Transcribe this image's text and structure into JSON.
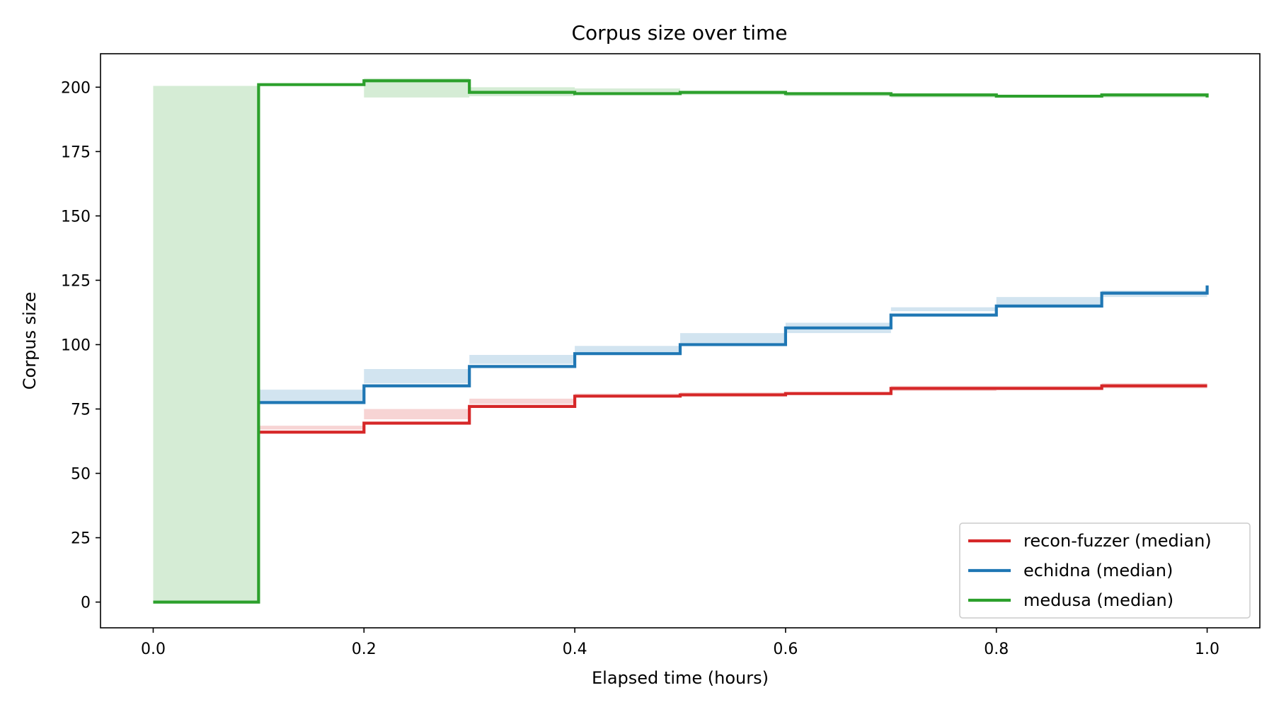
{
  "chart_data": {
    "type": "line",
    "title": "Corpus size over time",
    "xlabel": "Elapsed time (hours)",
    "ylabel": "Corpus size",
    "xlim": [
      -0.05,
      1.05
    ],
    "ylim": [
      -10,
      213
    ],
    "xticks": [
      0.0,
      0.2,
      0.4,
      0.6,
      0.8,
      1.0
    ],
    "xtick_labels": [
      "0.0",
      "0.2",
      "0.4",
      "0.6",
      "0.8",
      "1.0"
    ],
    "yticks": [
      0,
      25,
      50,
      75,
      100,
      125,
      150,
      175,
      200
    ],
    "ytick_labels": [
      "0",
      "25",
      "50",
      "75",
      "100",
      "125",
      "150",
      "175",
      "200"
    ],
    "step": "post",
    "grid": false,
    "legend_position": "lower-right",
    "series": [
      {
        "name": "recon-fuzzer (median)",
        "color": "#d62728",
        "x": [
          0.1,
          0.2,
          0.3,
          0.4,
          0.5,
          0.6,
          0.7,
          0.8,
          0.9,
          1.0
        ],
        "y": [
          66,
          69.5,
          76,
          80,
          80.5,
          81,
          83,
          83,
          84,
          84
        ],
        "band_low": [
          65,
          68.5,
          75,
          79,
          79.5,
          80,
          82,
          82,
          83,
          83
        ],
        "band_high": [
          67,
          71,
          77,
          81,
          81.5,
          82,
          84,
          84,
          85,
          85
        ]
      },
      {
        "name": "echidna (median)",
        "color": "#1f77b4",
        "x": [
          0.1,
          0.2,
          0.3,
          0.4,
          0.5,
          0.6,
          0.7,
          0.8,
          0.9,
          1.0
        ],
        "y": [
          77.5,
          84,
          91.5,
          96.5,
          100,
          106.5,
          111.5,
          115,
          120,
          123
        ],
        "band_low": [
          77,
          82.5,
          90.5,
          96,
          99.5,
          104.5,
          104.5,
          114.5,
          118.5,
          118.5
        ],
        "band_high": [
          78,
          85,
          92.5,
          97,
          100.5,
          108.5,
          113,
          115.5,
          121,
          124
        ]
      },
      {
        "name": "medusa (median)",
        "color": "#2ca02c",
        "x": [
          0.0,
          0.1,
          0.2,
          0.3,
          0.4,
          0.5,
          0.6,
          0.7,
          0.8,
          0.9,
          1.0
        ],
        "y": [
          0,
          201,
          202.5,
          198,
          197.5,
          198,
          197.5,
          197,
          196.5,
          197,
          196
        ],
        "band_low": [
          0,
          200.5,
          201.5,
          196,
          196.5,
          197.5,
          197,
          196.5,
          196,
          196.5,
          196
        ],
        "band_high": [
          0,
          201.5,
          203.5,
          200,
          199.5,
          198.5,
          198,
          197.5,
          197,
          197.5,
          197
        ]
      }
    ]
  }
}
